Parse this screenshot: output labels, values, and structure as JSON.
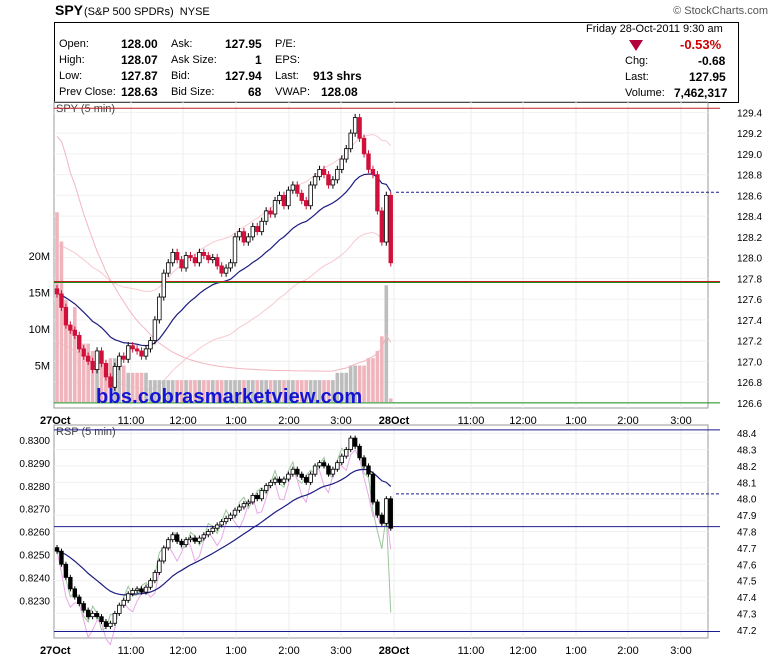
{
  "header": {
    "symbol": "SPY",
    "name": "(S&P 500 SPDRs)",
    "exchange": "NYSE",
    "brand": "© StockCharts.com"
  },
  "quote": {
    "open_label": "Open:",
    "open": "128.00",
    "high_label": "High:",
    "high": "128.07",
    "low_label": "Low:",
    "low": "127.87",
    "prev_close_label": "Prev Close:",
    "prev_close": "128.63",
    "ask_label": "Ask:",
    "ask": "127.95",
    "ask_size_label": "Ask Size:",
    "ask_size": "1",
    "bid_label": "Bid:",
    "bid": "127.94",
    "bid_size_label": "Bid Size:",
    "bid_size": "68",
    "pe_label": "P/E:",
    "eps_label": "EPS:",
    "last_label": "Last:",
    "last": "913 shrs",
    "vwap_label": "VWAP:",
    "vwap": "128.08",
    "date": "Friday   28-Oct-2011   9:30 am",
    "pct_change": "-0.53%",
    "chg_label": "Chg:",
    "chg": "-0.68",
    "last2_label": "Last:",
    "last2": "127.95",
    "volume_label": "Volume:",
    "volume": "7,462,317",
    "down_color": "#b3003c"
  },
  "watermark": "bbs.cobrasmarketview.com",
  "chart_data": [
    {
      "type": "candlestick",
      "panel_label": "SPY (5 min)",
      "ylim": [
        126.55,
        129.5
      ],
      "y_ticks": [
        "129.4",
        "129.2",
        "129.0",
        "128.8",
        "128.6",
        "128.4",
        "128.2",
        "128.0",
        "127.8",
        "127.6",
        "127.4",
        "127.2",
        "127.0",
        "126.8",
        "126.6"
      ],
      "x_tick_labels": [
        "27Oct",
        "11:00",
        "12:00",
        "1:00",
        "2:00",
        "3:00",
        "28Oct",
        "11:00",
        "12:00",
        "1:00",
        "2:00",
        "3:00"
      ],
      "prev_close_dashed": 128.63,
      "hlines": {
        "red": [
          129.44,
          127.77
        ],
        "green": [
          127.77,
          126.6
        ]
      },
      "volume_axis_labels": [
        "20M",
        "15M",
        "10M",
        "5M"
      ],
      "volume_ylim": [
        0,
        26000000
      ],
      "close": [
        127.65,
        127.52,
        127.35,
        127.3,
        127.25,
        127.12,
        127.05,
        127.0,
        126.92,
        127.1,
        126.98,
        126.85,
        126.75,
        126.95,
        127.05,
        127.02,
        127.15,
        127.12,
        127.1,
        127.05,
        127.12,
        127.2,
        127.4,
        127.62,
        127.85,
        127.95,
        128.05,
        127.98,
        127.9,
        128.02,
        128.0,
        127.95,
        128.05,
        128.02,
        127.98,
        128.0,
        127.92,
        127.85,
        127.9,
        127.95,
        128.2,
        128.25,
        128.15,
        128.2,
        128.3,
        128.25,
        128.35,
        128.45,
        128.42,
        128.55,
        128.6,
        128.5,
        128.65,
        128.7,
        128.62,
        128.55,
        128.5,
        128.7,
        128.78,
        128.85,
        128.8,
        128.7,
        128.75,
        128.85,
        128.95,
        129.05,
        129.2,
        129.35,
        129.15,
        129.0,
        128.85,
        128.8,
        128.45,
        128.15,
        128.6,
        127.95
      ],
      "volume_m": [
        26,
        22,
        14,
        10,
        13,
        9,
        8,
        8,
        7,
        6,
        7,
        5,
        6,
        6,
        5,
        5,
        4,
        4,
        4,
        4,
        4,
        3,
        3,
        3,
        3,
        3,
        3,
        3,
        3,
        3,
        3,
        3,
        3,
        3,
        3,
        3,
        3,
        3,
        3,
        3,
        3,
        3,
        3,
        3,
        3,
        3,
        3,
        3,
        3,
        3,
        3,
        3,
        3,
        3,
        3,
        3,
        3,
        3,
        3,
        3,
        3,
        3,
        3,
        4,
        4,
        4,
        5,
        5,
        5,
        5,
        6,
        6,
        7,
        9,
        16,
        0.5
      ]
    },
    {
      "type": "candlestick",
      "panel_label": "RSP (5 min)",
      "ylim": [
        47.15,
        48.45
      ],
      "y_ticks": [
        "48.4",
        "48.3",
        "48.2",
        "48.1",
        "48.0",
        "47.9",
        "47.8",
        "47.7",
        "47.6",
        "47.5",
        "47.4",
        "47.3",
        "47.2"
      ],
      "left_ticks": [
        "0.8300",
        "0.8290",
        "0.8280",
        "0.8270",
        "0.8260",
        "0.8250",
        "0.8240",
        "0.8230"
      ],
      "x_tick_labels": [
        "27Oct",
        "11:00",
        "12:00",
        "1:00",
        "2:00",
        "3:00",
        "28Oct",
        "11:00",
        "12:00",
        "1:00",
        "2:00",
        "3:00"
      ],
      "prev_close_dashed": 48.03,
      "hlines": {
        "blue": [
          48.42,
          47.83,
          47.19
        ]
      },
      "close": [
        47.68,
        47.6,
        47.52,
        47.45,
        47.4,
        47.36,
        47.32,
        47.28,
        47.3,
        47.28,
        47.25,
        47.22,
        47.24,
        47.3,
        47.35,
        47.38,
        47.42,
        47.44,
        47.45,
        47.43,
        47.46,
        47.5,
        47.55,
        47.62,
        47.7,
        47.75,
        47.78,
        47.74,
        47.72,
        47.75,
        47.76,
        47.74,
        47.76,
        47.78,
        47.8,
        47.82,
        47.84,
        47.86,
        47.88,
        47.9,
        47.93,
        47.95,
        47.97,
        47.98,
        48.02,
        48.0,
        48.05,
        48.08,
        48.1,
        48.12,
        48.1,
        48.12,
        48.15,
        48.18,
        48.15,
        48.13,
        48.1,
        48.15,
        48.2,
        48.22,
        48.2,
        48.15,
        48.18,
        48.22,
        48.26,
        48.3,
        48.37,
        48.32,
        48.25,
        48.2,
        48.15,
        47.98,
        47.9,
        47.85,
        48.0,
        47.82
      ]
    }
  ]
}
